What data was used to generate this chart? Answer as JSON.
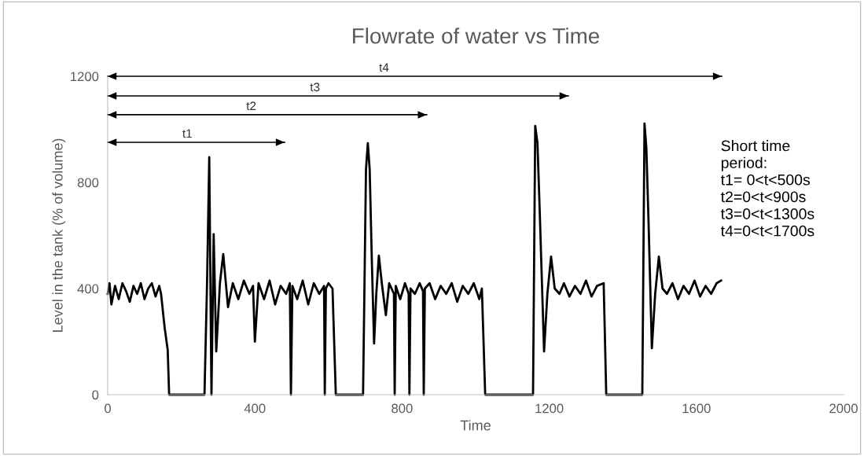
{
  "chart_data": {
    "type": "line",
    "title": "Flowrate of water vs Time",
    "xlabel": "Time",
    "ylabel": "Level in the tank (% of volume)",
    "xlim": [
      0,
      2000
    ],
    "xticks": [
      0,
      400,
      800,
      1200,
      1600,
      2000
    ],
    "ylim": [
      0,
      1200
    ],
    "yticks": [
      0,
      400,
      800,
      1200
    ],
    "grid": false,
    "legend": false,
    "marker": "none",
    "line_style": "solid",
    "series": [
      {
        "color": "#000000",
        "x": [
          0,
          5,
          10,
          20,
          30,
          40,
          50,
          60,
          70,
          80,
          90,
          100,
          110,
          120,
          130,
          140,
          145,
          155,
          163,
          167,
          263,
          270,
          276,
          282,
          288,
          295,
          305,
          314,
          327,
          340,
          355,
          370,
          385,
          395,
          400,
          410,
          425,
          440,
          455,
          470,
          485,
          495,
          498,
          502,
          515,
          530,
          545,
          560,
          575,
          588,
          590,
          593,
          600,
          611,
          620,
          694,
          702,
          707,
          712,
          718,
          724,
          730,
          737,
          745,
          756,
          765,
          778,
          780,
          783,
          795,
          808,
          818,
          820,
          823,
          835,
          848,
          857,
          859,
          862,
          875,
          890,
          905,
          920,
          935,
          950,
          965,
          980,
          995,
          1010,
          1017,
          1026,
          1156,
          1162,
          1168,
          1174,
          1186,
          1195,
          1205,
          1215,
          1228,
          1240,
          1255,
          1270,
          1285,
          1300,
          1315,
          1330,
          1348,
          1355,
          1453,
          1459,
          1464,
          1470,
          1479,
          1488,
          1498,
          1508,
          1520,
          1535,
          1550,
          1565,
          1580,
          1595,
          1610,
          1625,
          1640,
          1655,
          1667
        ],
        "values": [
          380,
          420,
          340,
          410,
          360,
          420,
          390,
          350,
          410,
          380,
          420,
          360,
          400,
          420,
          370,
          410,
          380,
          250,
          170,
          0,
          0,
          420,
          895,
          0,
          605,
          163,
          420,
          530,
          330,
          420,
          360,
          430,
          380,
          410,
          200,
          420,
          360,
          430,
          340,
          410,
          380,
          420,
          0,
          410,
          360,
          430,
          340,
          420,
          380,
          410,
          0,
          400,
          420,
          400,
          0,
          0,
          850,
          948,
          850,
          500,
          193,
          380,
          524,
          420,
          300,
          420,
          380,
          0,
          410,
          360,
          420,
          380,
          0,
          400,
          380,
          420,
          390,
          0,
          400,
          420,
          360,
          410,
          380,
          420,
          350,
          410,
          380,
          420,
          360,
          400,
          0,
          0,
          1013,
          950,
          700,
          163,
          380,
          520,
          400,
          380,
          420,
          370,
          410,
          380,
          430,
          370,
          410,
          420,
          0,
          0,
          1022,
          930,
          650,
          175,
          380,
          520,
          400,
          380,
          420,
          360,
          410,
          380,
          430,
          370,
          410,
          380,
          420,
          430
        ]
      },
      {
        "color": "#000000",
        "x": [
          0,
          481
        ],
        "values": [
          951,
          951
        ]
      },
      {
        "color": "#000000",
        "x": [
          0,
          867
        ],
        "values": [
          1055,
          1055
        ]
      },
      {
        "color": "#000000",
        "x": [
          0,
          1252
        ],
        "values": [
          1126,
          1126
        ]
      },
      {
        "color": "#000000",
        "x": [
          0,
          1669
        ],
        "values": [
          1200,
          1200
        ]
      }
    ],
    "annotations": [
      "t1",
      "t2",
      "t3",
      "t4",
      "Short time\nperiod:\nt1= 0<t<500s\nt2=0<t<900s\nt3=0<t<1300s\nt4=0<t<1700s"
    ]
  }
}
